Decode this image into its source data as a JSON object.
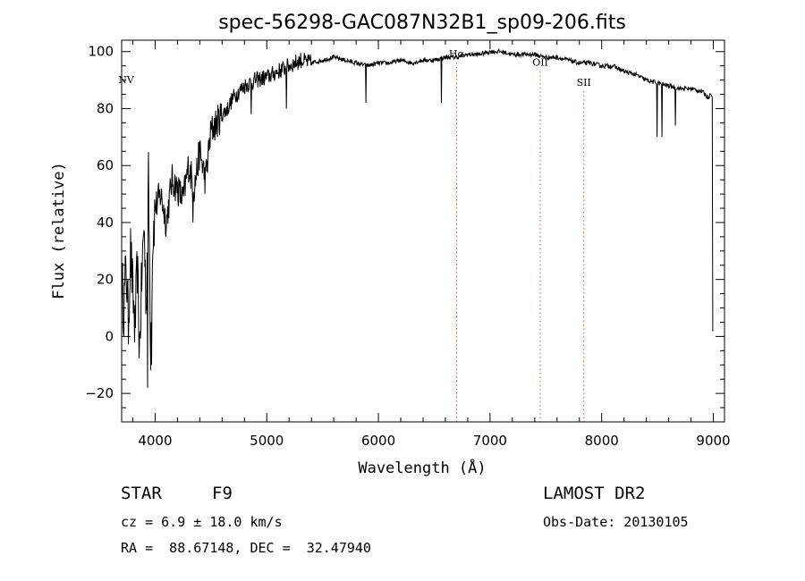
{
  "chart_data": {
    "type": "line",
    "title": "spec-56298-GAC087N32B1_sp09-206.fits",
    "xlabel": "Wavelength (Å)",
    "ylabel": "Flux (relative)",
    "xlim": [
      3700,
      9100
    ],
    "ylim": [
      -30,
      104
    ],
    "xticks": [
      4000,
      5000,
      6000,
      7000,
      8000,
      9000
    ],
    "xtick_labels": [
      "4000",
      "5000",
      "6000",
      "7000",
      "8000",
      "9000"
    ],
    "yticks": [
      -20,
      0,
      20,
      40,
      60,
      80,
      100
    ],
    "ytick_labels": [
      "−20",
      "0",
      "20",
      "40",
      "60",
      "80",
      "100"
    ],
    "series": [
      {
        "name": "flux",
        "x": [
          3700,
          3720,
          3740,
          3760,
          3780,
          3800,
          3820,
          3840,
          3860,
          3880,
          3900,
          3920,
          3940,
          3960,
          3980,
          4000,
          4050,
          4100,
          4150,
          4200,
          4250,
          4300,
          4350,
          4400,
          4450,
          4500,
          4550,
          4600,
          4650,
          4700,
          4800,
          4900,
          5000,
          5100,
          5200,
          5300,
          5400,
          5500,
          5600,
          5700,
          5800,
          5900,
          6000,
          6100,
          6200,
          6300,
          6400,
          6500,
          6600,
          6700,
          6800,
          6900,
          7000,
          7100,
          7200,
          7300,
          7400,
          7500,
          7600,
          7700,
          7800,
          7900,
          8000,
          8100,
          8200,
          8300,
          8400,
          8500,
          8600,
          8700,
          8800,
          8900,
          8950,
          8980
        ],
        "y": [
          20,
          10,
          25,
          5,
          30,
          15,
          2,
          25,
          -5,
          20,
          40,
          10,
          55,
          -4,
          35,
          45,
          50,
          40,
          55,
          52,
          48,
          60,
          52,
          65,
          55,
          72,
          75,
          78,
          80,
          84,
          88,
          90,
          91,
          93,
          95,
          97,
          96,
          97,
          98,
          97,
          96,
          95,
          96,
          96,
          97,
          96,
          97,
          97,
          98,
          98,
          99,
          99,
          100,
          100,
          99,
          99,
          99,
          98,
          98,
          97,
          96,
          96,
          95,
          95,
          93,
          92,
          90,
          89,
          88,
          87,
          87,
          86,
          84,
          85
        ]
      }
    ],
    "absorption_lines": [
      {
        "x": 3933,
        "depth": -18
      },
      {
        "x": 3968,
        "depth": -10
      },
      {
        "x": 4101,
        "depth": 38
      },
      {
        "x": 4340,
        "depth": 40
      },
      {
        "x": 4861,
        "depth": 78
      },
      {
        "x": 5175,
        "depth": 80
      },
      {
        "x": 5890,
        "depth": 82
      },
      {
        "x": 6563,
        "depth": 82
      },
      {
        "x": 8498,
        "depth": 70
      },
      {
        "x": 8542,
        "depth": 70
      },
      {
        "x": 8662,
        "depth": 74
      }
    ],
    "reference_lines": [
      {
        "label": "NV",
        "x": 3740,
        "label_y": 89,
        "dashed": false
      },
      {
        "label": "Hα",
        "x": 6700,
        "label_y": 98,
        "dashed": true
      },
      {
        "label": "OII",
        "x": 7450,
        "label_y": 95,
        "dashed": true
      },
      {
        "label": "SII",
        "x": 7840,
        "label_y": 88,
        "dashed": true
      }
    ],
    "grid": false
  },
  "info": {
    "object_class": "STAR",
    "subclass": "F9",
    "cz": "cz = 6.9 ± 18.0 km/s",
    "coords": "RA =  88.67148, DEC =  32.47940",
    "survey": "LAMOST DR2",
    "obs_date": "Obs-Date: 20130105"
  }
}
